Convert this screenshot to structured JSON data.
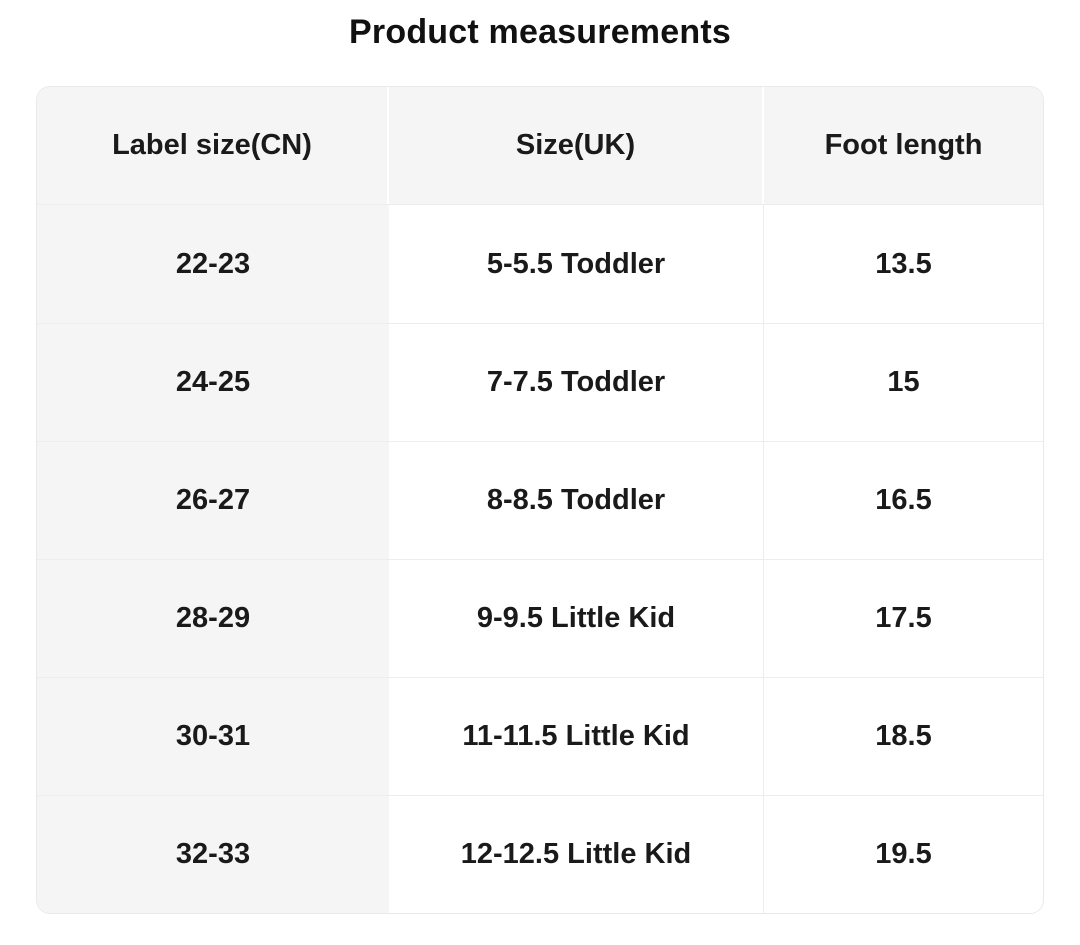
{
  "title": "Product measurements",
  "table": {
    "headers": [
      "Label size(CN)",
      "Size(UK)",
      "Foot length"
    ],
    "rows": [
      {
        "cn": "22-23",
        "uk": "5-5.5 Toddler",
        "foot": "13.5"
      },
      {
        "cn": "24-25",
        "uk": "7-7.5 Toddler",
        "foot": "15"
      },
      {
        "cn": "26-27",
        "uk": "8-8.5 Toddler",
        "foot": "16.5"
      },
      {
        "cn": "28-29",
        "uk": "9-9.5 Little Kid",
        "foot": "17.5"
      },
      {
        "cn": "30-31",
        "uk": "11-11.5 Little Kid",
        "foot": "18.5"
      },
      {
        "cn": "32-33",
        "uk": "12-12.5 Little Kid",
        "foot": "19.5"
      }
    ]
  },
  "colors": {
    "header_bg": "#f5f5f6",
    "first_column_bg": "#f5f5f6",
    "row_bg": "#ffffff",
    "divider": "#ededed",
    "outer_border": "#e9e9e9",
    "text": "#1a1a1a"
  }
}
